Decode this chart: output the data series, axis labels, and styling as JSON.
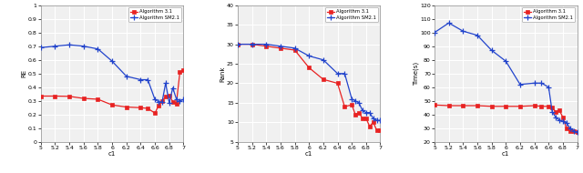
{
  "c1_values": [
    5.0,
    5.2,
    5.4,
    5.6,
    5.8,
    6.0,
    6.2,
    6.4,
    6.5,
    6.6,
    6.65,
    6.7,
    6.75,
    6.8,
    6.85,
    6.9,
    6.95,
    7.0
  ],
  "plot1": {
    "xlabel": "c1",
    "ylabel": "RE",
    "ylim": [
      0,
      1
    ],
    "yticks": [
      0,
      0.1,
      0.2,
      0.3,
      0.4,
      0.5,
      0.6,
      0.7,
      0.8,
      0.9,
      1.0
    ],
    "xlim": [
      5,
      7
    ],
    "xticks": [
      5,
      5.2,
      5.4,
      5.6,
      5.8,
      6,
      6.2,
      6.4,
      6.6,
      6.8,
      7
    ],
    "red_y": [
      0.335,
      0.335,
      0.333,
      0.318,
      0.312,
      0.27,
      0.255,
      0.25,
      0.245,
      0.21,
      0.265,
      0.3,
      0.33,
      0.34,
      0.295,
      0.28,
      0.51,
      0.525
    ],
    "blue_y": [
      0.69,
      0.7,
      0.71,
      0.7,
      0.68,
      0.59,
      0.48,
      0.455,
      0.455,
      0.31,
      0.295,
      0.29,
      0.43,
      0.285,
      0.395,
      0.315,
      0.3,
      0.31
    ]
  },
  "plot2": {
    "xlabel": "c1",
    "ylabel": "Rank",
    "ylim": [
      5,
      40
    ],
    "yticks": [
      5,
      10,
      15,
      20,
      25,
      30,
      35,
      40
    ],
    "xlim": [
      5,
      7
    ],
    "xticks": [
      5,
      5.2,
      5.4,
      5.6,
      5.8,
      6,
      6.2,
      6.4,
      6.6,
      6.8,
      7
    ],
    "red_y": [
      30,
      30,
      29.5,
      29,
      28.5,
      24,
      21,
      20,
      14,
      14.5,
      12,
      12.5,
      11,
      11,
      9,
      10,
      8,
      8
    ],
    "blue_y": [
      30,
      30,
      30,
      29.5,
      29,
      27,
      26,
      22.5,
      22.5,
      16,
      15.5,
      15,
      13,
      12.5,
      12.5,
      11,
      10.5,
      10.5
    ]
  },
  "plot3": {
    "xlabel": "c1",
    "ylabel": "Time(s)",
    "ylim": [
      20,
      120
    ],
    "yticks": [
      20,
      30,
      40,
      50,
      60,
      70,
      80,
      90,
      100,
      110,
      120
    ],
    "xlim": [
      5,
      7
    ],
    "xticks": [
      5,
      5.2,
      5.4,
      5.6,
      5.8,
      6,
      6.2,
      6.4,
      6.6,
      6.8,
      7
    ],
    "red_y": [
      47,
      46.5,
      46.5,
      46.5,
      46,
      46,
      46,
      46.5,
      46,
      46,
      45,
      42,
      43,
      38,
      30,
      28,
      28,
      27
    ],
    "blue_y": [
      100,
      107,
      101,
      98,
      87,
      79,
      62,
      63,
      63,
      60,
      42,
      38,
      36,
      35,
      34,
      30,
      28,
      27
    ]
  },
  "red_color": "#e82222",
  "blue_color": "#2244cc",
  "legend_alg1": "Algorithm 3.1",
  "legend_alg2": "Algorithm SM2.1",
  "grid_color": "#cccccc",
  "bg_color": "#f0f0f0"
}
